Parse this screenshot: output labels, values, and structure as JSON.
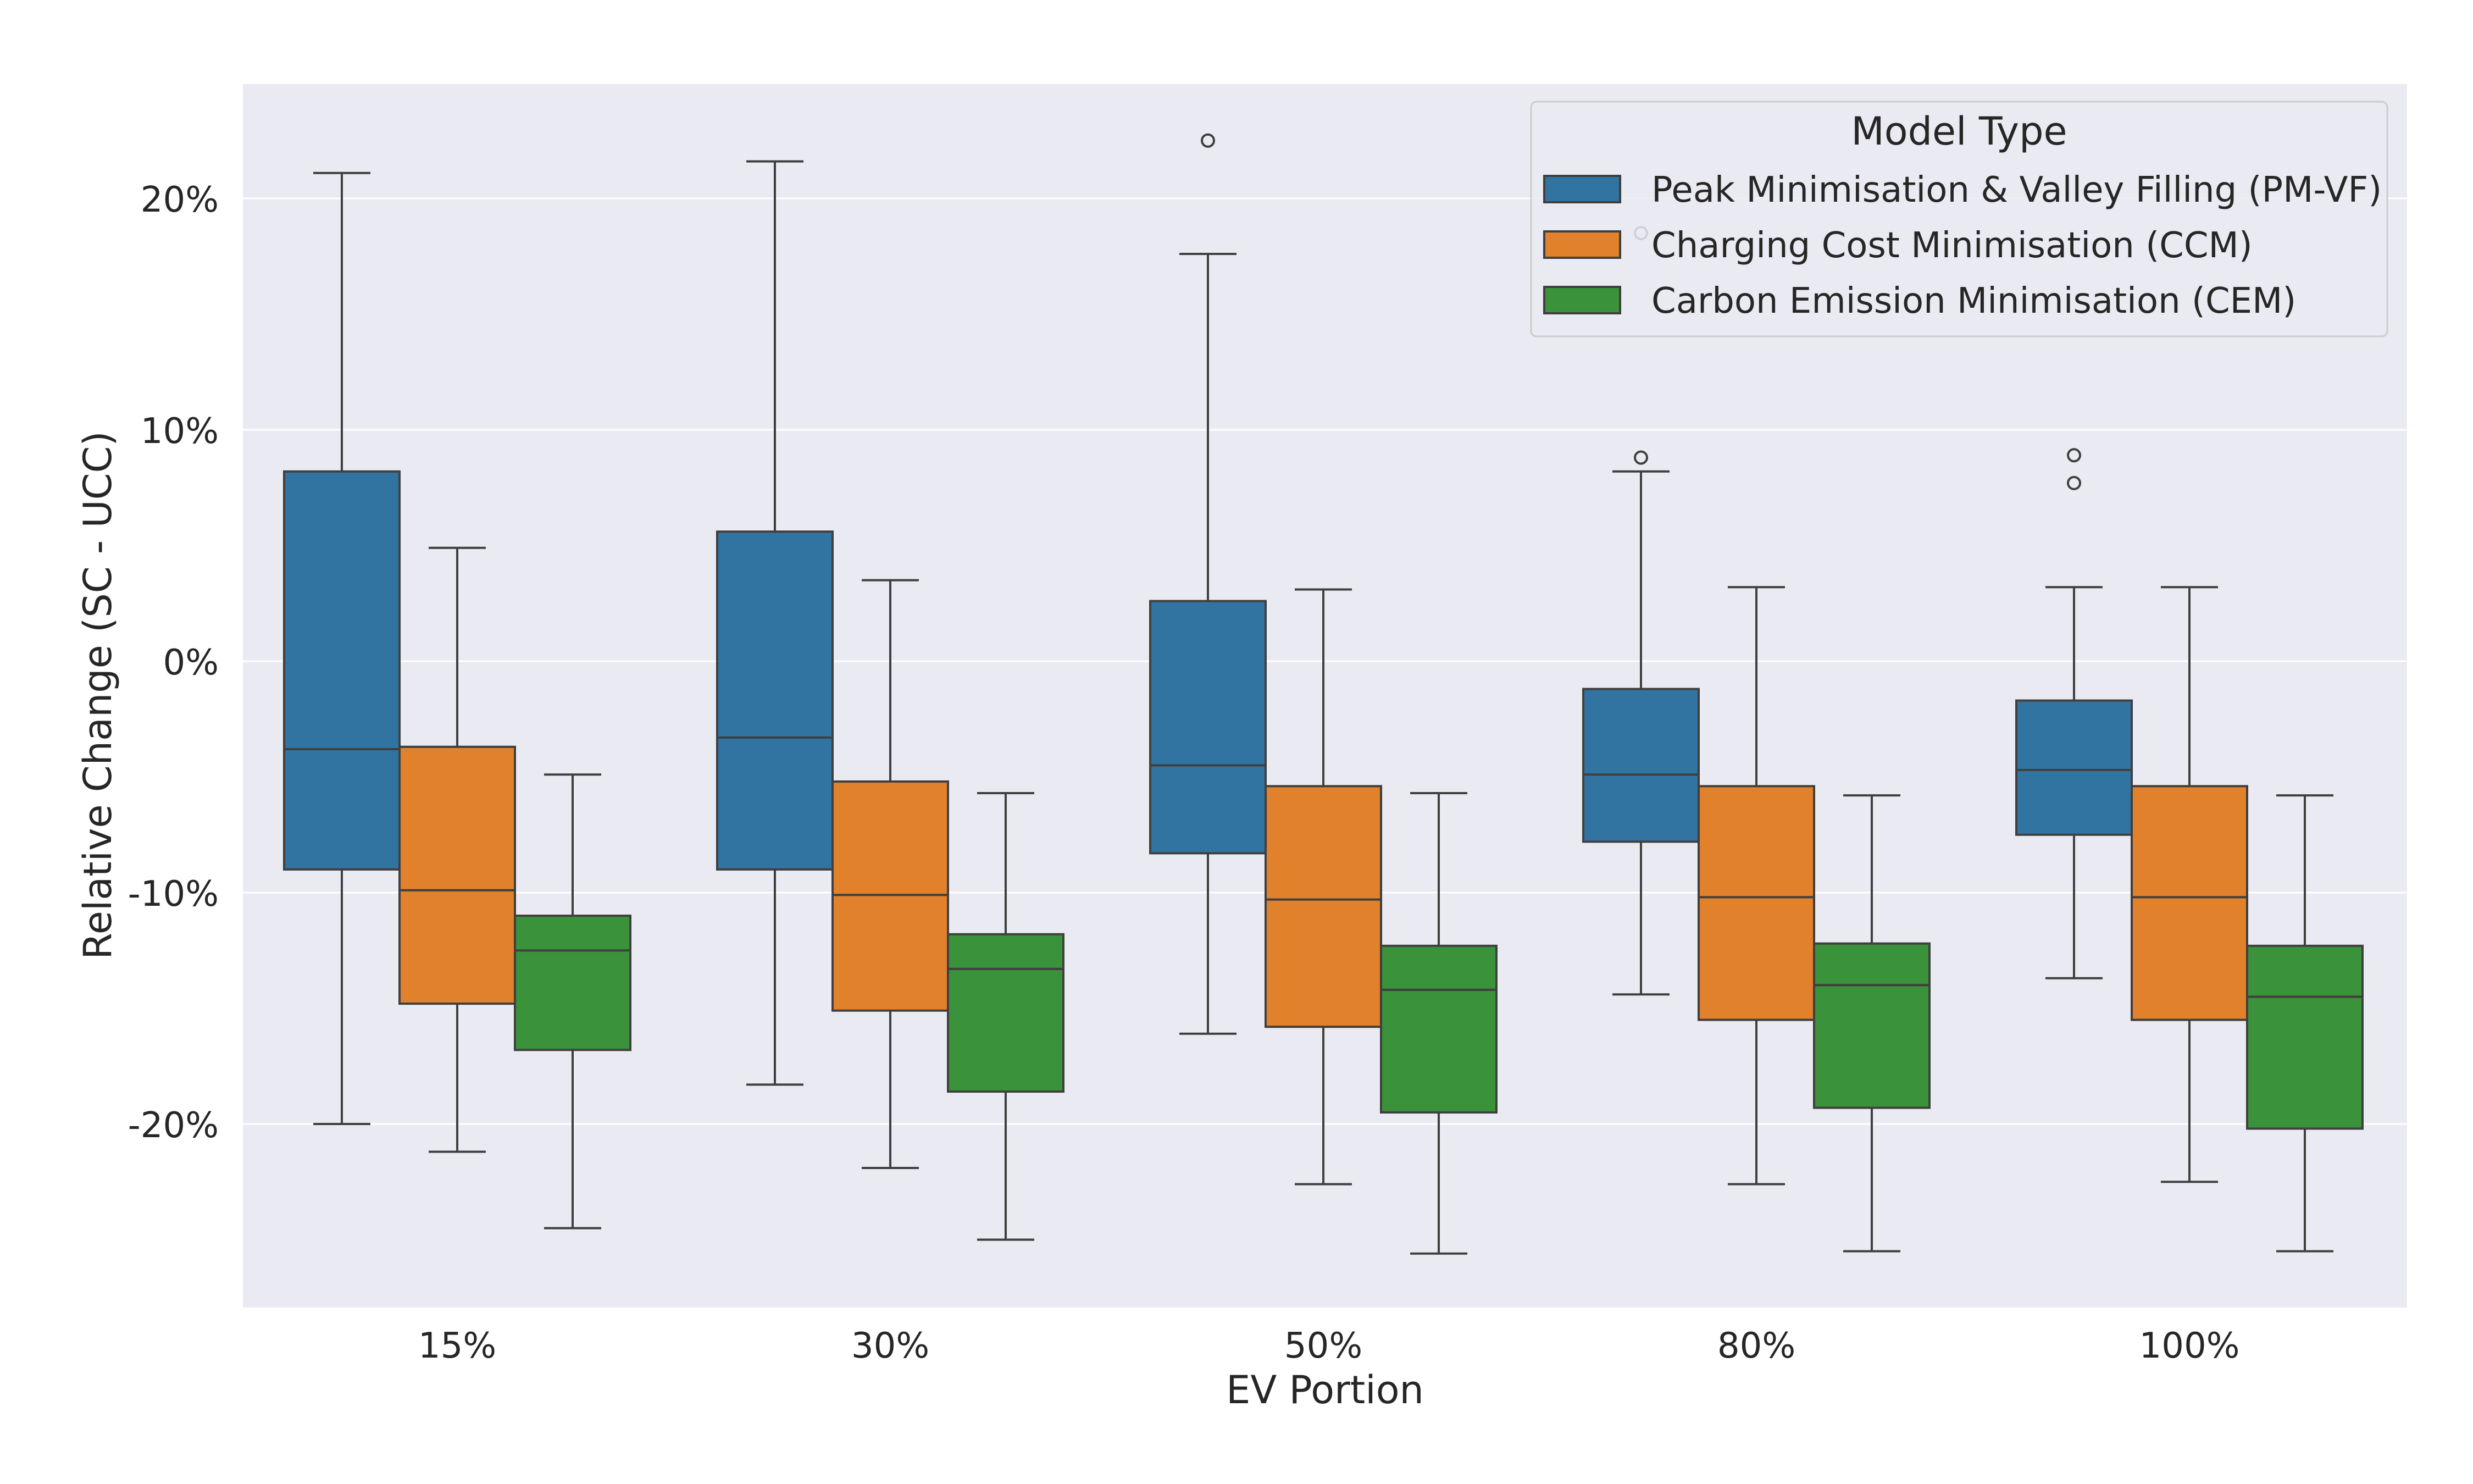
{
  "chart_data": {
    "type": "box",
    "title": "",
    "xlabel": "EV Portion",
    "ylabel": "Relative Change (SC - UCC)",
    "categories": [
      "15%",
      "30%",
      "50%",
      "80%",
      "100%"
    ],
    "ylim": [
      -28,
      24.5
    ],
    "yticks": [
      20,
      10,
      0,
      -10,
      -20
    ],
    "ytick_labels": [
      "20%",
      "10%",
      "0%",
      "-10%",
      "-20%"
    ],
    "grid": true,
    "legend": {
      "title": "Model Type",
      "position": "upper right"
    },
    "series": [
      {
        "name": "Peak Minimisation & Valley Filling (PM-VF)",
        "color": "#3274a1",
        "boxes": [
          {
            "whisker_low": -20.0,
            "q1": -9.0,
            "median": -3.8,
            "q3": 8.2,
            "whisker_high": 21.1,
            "outliers": []
          },
          {
            "whisker_low": -18.3,
            "q1": -9.0,
            "median": -3.3,
            "q3": 5.6,
            "whisker_high": 21.6,
            "outliers": []
          },
          {
            "whisker_low": -16.1,
            "q1": -8.3,
            "median": -4.5,
            "q3": 2.6,
            "whisker_high": 17.6,
            "outliers": [
              22.5
            ]
          },
          {
            "whisker_low": -14.4,
            "q1": -7.8,
            "median": -4.9,
            "q3": -1.2,
            "whisker_high": 8.2,
            "outliers": [
              8.8,
              18.5
            ]
          },
          {
            "whisker_low": -13.7,
            "q1": -7.5,
            "median": -4.7,
            "q3": -1.7,
            "whisker_high": 3.2,
            "outliers": [
              7.7,
              8.9
            ]
          }
        ]
      },
      {
        "name": "Charging Cost Minimisation (CCM)",
        "color": "#e1812c",
        "boxes": [
          {
            "whisker_low": -21.2,
            "q1": -14.8,
            "median": -9.9,
            "q3": -3.7,
            "whisker_high": 4.9,
            "outliers": []
          },
          {
            "whisker_low": -21.9,
            "q1": -15.1,
            "median": -10.1,
            "q3": -5.2,
            "whisker_high": 3.5,
            "outliers": []
          },
          {
            "whisker_low": -22.6,
            "q1": -15.8,
            "median": -10.3,
            "q3": -5.4,
            "whisker_high": 3.1,
            "outliers": []
          },
          {
            "whisker_low": -22.6,
            "q1": -15.5,
            "median": -10.2,
            "q3": -5.4,
            "whisker_high": 3.2,
            "outliers": []
          },
          {
            "whisker_low": -22.5,
            "q1": -15.5,
            "median": -10.2,
            "q3": -5.4,
            "whisker_high": 3.2,
            "outliers": []
          }
        ]
      },
      {
        "name": "Carbon Emission Minimisation (CEM)",
        "color": "#3a923a",
        "boxes": [
          {
            "whisker_low": -24.5,
            "q1": -16.8,
            "median": -12.5,
            "q3": -11.0,
            "whisker_high": -4.9,
            "outliers": []
          },
          {
            "whisker_low": -25.0,
            "q1": -18.6,
            "median": -13.3,
            "q3": -11.8,
            "whisker_high": -5.7,
            "outliers": []
          },
          {
            "whisker_low": -25.6,
            "q1": -19.5,
            "median": -14.2,
            "q3": -12.3,
            "whisker_high": -5.7,
            "outliers": []
          },
          {
            "whisker_low": -25.5,
            "q1": -19.3,
            "median": -14.0,
            "q3": -12.2,
            "whisker_high": -5.8,
            "outliers": []
          },
          {
            "whisker_low": -25.5,
            "q1": -20.2,
            "median": -14.5,
            "q3": -12.3,
            "whisker_high": -5.8,
            "outliers": []
          }
        ]
      }
    ]
  }
}
